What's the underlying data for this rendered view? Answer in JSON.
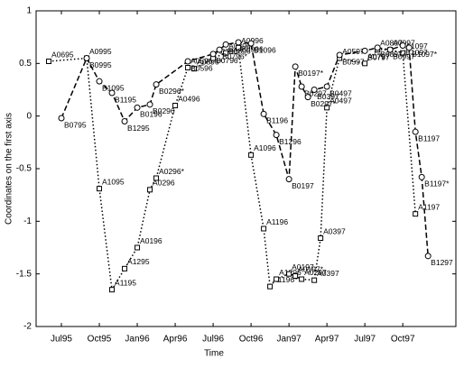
{
  "chart_data": {
    "type": "line",
    "xlabel": "Time",
    "ylabel": "Coordinates on the first axis",
    "xlim": [
      5,
      38.2
    ],
    "ylim": [
      -2,
      1
    ],
    "xticks": [
      {
        "value": 7,
        "label": "Jul95"
      },
      {
        "value": 10,
        "label": "Oct95"
      },
      {
        "value": 13,
        "label": "Jan96"
      },
      {
        "value": 16,
        "label": "Apr96"
      },
      {
        "value": 19,
        "label": "Jul96"
      },
      {
        "value": 22,
        "label": "Oct96"
      },
      {
        "value": 25,
        "label": "Jan97"
      },
      {
        "value": 28,
        "label": "Apr97"
      },
      {
        "value": 31,
        "label": "Jul97"
      },
      {
        "value": 34,
        "label": "Oct97"
      }
    ],
    "yticks": [
      -2,
      -1.5,
      -1,
      -0.5,
      0,
      0.5,
      1
    ],
    "series": [
      {
        "color": "#000000",
        "style": "dotted",
        "marker": "square",
        "labels": [
          "A0695",
          "A0995",
          "A1095",
          "A1195",
          "A1295",
          "A0196",
          "A0296",
          "A0296*",
          "A0496",
          "A0596",
          "A0596*",
          "A0796",
          "A0896",
          "A0996",
          "A1096",
          "A1196",
          "A1196*",
          "A1296",
          "A0197",
          "A0197*",
          "A0297",
          "A0397",
          "A0397",
          "A0497",
          "A0597",
          "A0797",
          "A0897",
          "A0997",
          "A1097",
          "A1197"
        ],
        "x": [
          6,
          9,
          10,
          11,
          12,
          13,
          14,
          14.5,
          16,
          17,
          17.5,
          19,
          20,
          21,
          22,
          23,
          23.5,
          24,
          25,
          25.5,
          26,
          27,
          27.5,
          28,
          29,
          31,
          32,
          33,
          34,
          35
        ],
        "values": [
          0.52,
          0.55,
          -0.69,
          -1.65,
          -1.45,
          -1.25,
          -0.7,
          -0.59,
          0.1,
          0.46,
          0.45,
          0.55,
          0.6,
          0.65,
          -0.37,
          -1.07,
          -1.62,
          -1.55,
          -1.5,
          -1.52,
          -1.55,
          -1.56,
          -1.16,
          0.08,
          0.55,
          0.5,
          0.63,
          0.63,
          0.6,
          -0.93
        ]
      },
      {
        "color": "#000000",
        "style": "dashed",
        "marker": "circle",
        "labels": [
          "B0795",
          "B0995",
          "B1095",
          "B1195",
          "B1295",
          "B0196",
          "B0296",
          "B0296*",
          "B0596",
          "B0796",
          "B0796*",
          "B0896",
          "B0996",
          "B1096",
          "B1196",
          "B1296",
          "B0197",
          "B0197*",
          "B0297",
          "B0297*",
          "B0397",
          "B0497",
          "B0597",
          "B0797",
          "B0897",
          "B0997",
          "B1097",
          "B1097*",
          "B1197",
          "B1197*",
          "B1297"
        ],
        "x": [
          7,
          9,
          10,
          11,
          12,
          13,
          14,
          14.5,
          17,
          19,
          19.5,
          20,
          21,
          22,
          23,
          24,
          25,
          25.5,
          26,
          26.5,
          27,
          28,
          29,
          31,
          32,
          33,
          34,
          34.5,
          35,
          35.5,
          36
        ],
        "values": [
          -0.02,
          0.55,
          0.33,
          0.22,
          -0.05,
          0.08,
          0.11,
          0.3,
          0.52,
          0.59,
          0.63,
          0.68,
          0.7,
          0.69,
          0.02,
          -0.18,
          -0.6,
          0.47,
          0.28,
          0.18,
          0.25,
          0.28,
          0.58,
          0.62,
          0.65,
          0.63,
          0.67,
          0.65,
          -0.15,
          -0.58,
          -1.33
        ]
      }
    ]
  }
}
